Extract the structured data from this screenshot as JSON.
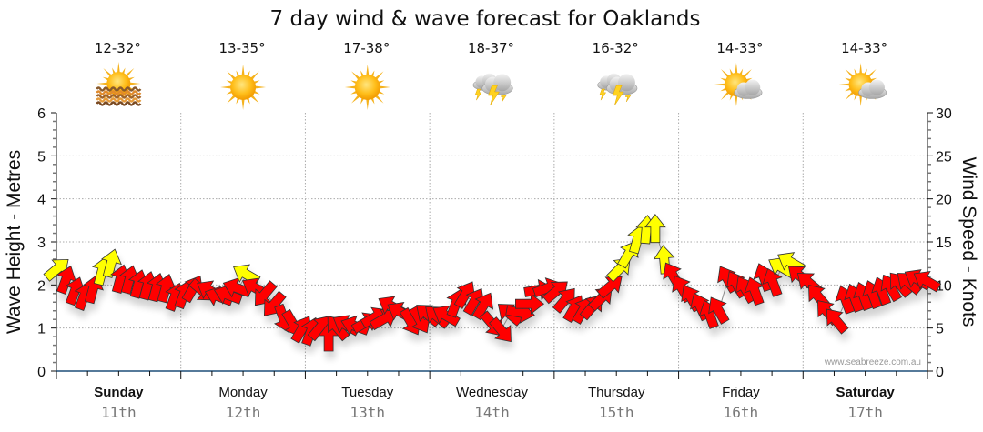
{
  "chart_data": {
    "type": "scatter",
    "title": "7 day wind & wave forecast for Oaklands",
    "ylabel_left": "Wave Height - Metres",
    "ylabel_right": "Wind Speed - Knots",
    "ylim_left": [
      0,
      6
    ],
    "ylim_right": [
      0,
      30
    ],
    "yticks_left": [
      "0",
      "1",
      "2",
      "3",
      "4",
      "5",
      "6"
    ],
    "yticks_right": [
      "0",
      "5",
      "10",
      "15",
      "20",
      "25",
      "30"
    ],
    "grid": true,
    "credit": "www.seabreeze.com.au",
    "days": [
      {
        "name": "Sunday",
        "date": "11th",
        "bold": true,
        "temp": "12-32°",
        "icon": "sun-haze-icon"
      },
      {
        "name": "Monday",
        "date": "12th",
        "bold": false,
        "temp": "13-35°",
        "icon": "sun-icon"
      },
      {
        "name": "Tuesday",
        "date": "13th",
        "bold": false,
        "temp": "17-38°",
        "icon": "sun-icon"
      },
      {
        "name": "Wednesday",
        "date": "14th",
        "bold": false,
        "temp": "18-37°",
        "icon": "thunderstorm-icon"
      },
      {
        "name": "Thursday",
        "date": "15th",
        "bold": false,
        "temp": "16-32°",
        "icon": "thunderstorm-icon"
      },
      {
        "name": "Friday",
        "date": "16th",
        "bold": false,
        "temp": "14-33°",
        "icon": "partly-cloudy-icon"
      },
      {
        "name": "Saturday",
        "date": "17th",
        "bold": true,
        "temp": "14-33°",
        "icon": "partly-cloudy-icon"
      }
    ],
    "series": [
      {
        "name": "Wind",
        "note": "Each arrow: time in hours from start, wind speed in knots (right axis), heading in degrees the arrow points (0 = up, clockwise)",
        "points": [
          {
            "t": 0,
            "speed": 11.8,
            "dir": 50,
            "color": "yellow"
          },
          {
            "t": 2,
            "speed": 10.5,
            "dir": 20,
            "color": "red"
          },
          {
            "t": 4,
            "speed": 9.2,
            "dir": 20,
            "color": "red"
          },
          {
            "t": 6,
            "speed": 8.6,
            "dir": 20,
            "color": "red"
          },
          {
            "t": 8,
            "speed": 9.4,
            "dir": 15,
            "color": "red"
          },
          {
            "t": 10,
            "speed": 11.5,
            "dir": 15,
            "color": "yellow"
          },
          {
            "t": 12,
            "speed": 12.4,
            "dir": 15,
            "color": "yellow"
          },
          {
            "t": 14,
            "speed": 10.6,
            "dir": 15,
            "color": "red"
          },
          {
            "t": 16,
            "speed": 10.5,
            "dir": 15,
            "color": "red"
          },
          {
            "t": 18,
            "speed": 10.0,
            "dir": 15,
            "color": "red"
          },
          {
            "t": 20,
            "speed": 9.8,
            "dir": 15,
            "color": "red"
          },
          {
            "t": 22,
            "speed": 9.6,
            "dir": 15,
            "color": "red"
          },
          {
            "t": 24,
            "speed": 9.5,
            "dir": 15,
            "color": "red"
          },
          {
            "t": 26,
            "speed": 8.5,
            "dir": 20,
            "color": "red"
          },
          {
            "t": 28,
            "speed": 8.8,
            "dir": 20,
            "color": "red"
          },
          {
            "t": 30,
            "speed": 9.5,
            "dir": 30,
            "color": "red"
          },
          {
            "t": 32,
            "speed": 9.4,
            "dir": 130,
            "color": "red"
          },
          {
            "t": 34,
            "speed": 9.3,
            "dir": 300,
            "color": "red"
          },
          {
            "t": 36,
            "speed": 8.6,
            "dir": 290,
            "color": "red"
          },
          {
            "t": 38,
            "speed": 8.8,
            "dir": 290,
            "color": "red"
          },
          {
            "t": 40,
            "speed": 9.6,
            "dir": 290,
            "color": "red"
          },
          {
            "t": 42,
            "speed": 11.2,
            "dir": 300,
            "color": "yellow"
          },
          {
            "t": 44,
            "speed": 9.6,
            "dir": 300,
            "color": "red"
          },
          {
            "t": 46,
            "speed": 9.0,
            "dir": 220,
            "color": "red"
          },
          {
            "t": 48,
            "speed": 7.8,
            "dir": 220,
            "color": "red"
          },
          {
            "t": 50,
            "speed": 6.2,
            "dir": 160,
            "color": "red"
          },
          {
            "t": 52,
            "speed": 5.6,
            "dir": 150,
            "color": "red"
          },
          {
            "t": 54,
            "speed": 4.8,
            "dir": 30,
            "color": "red"
          },
          {
            "t": 56,
            "speed": 4.5,
            "dir": 20,
            "color": "red"
          },
          {
            "t": 58,
            "speed": 5.0,
            "dir": 40,
            "color": "red"
          },
          {
            "t": 60,
            "speed": 3.8,
            "dir": 0,
            "color": "red"
          },
          {
            "t": 62,
            "speed": 5.0,
            "dir": 320,
            "color": "red"
          },
          {
            "t": 64,
            "speed": 5.3,
            "dir": 300,
            "color": "red"
          },
          {
            "t": 66,
            "speed": 5.2,
            "dir": 290,
            "color": "red"
          },
          {
            "t": 68,
            "speed": 5.6,
            "dir": 60,
            "color": "red"
          },
          {
            "t": 70,
            "speed": 6.2,
            "dir": 60,
            "color": "red"
          },
          {
            "t": 72,
            "speed": 6.0,
            "dir": 60,
            "color": "red"
          },
          {
            "t": 74,
            "speed": 7.5,
            "dir": 300,
            "color": "red"
          },
          {
            "t": 76,
            "speed": 6.8,
            "dir": 300,
            "color": "red"
          },
          {
            "t": 78,
            "speed": 5.8,
            "dir": 150,
            "color": "red"
          },
          {
            "t": 80,
            "speed": 6.0,
            "dir": 150,
            "color": "red"
          },
          {
            "t": 82,
            "speed": 6.5,
            "dir": 310,
            "color": "red"
          },
          {
            "t": 84,
            "speed": 6.3,
            "dir": 310,
            "color": "red"
          },
          {
            "t": 86,
            "speed": 6.4,
            "dir": 300,
            "color": "red"
          },
          {
            "t": 88,
            "speed": 7.8,
            "dir": 20,
            "color": "red"
          },
          {
            "t": 90,
            "speed": 8.8,
            "dir": 30,
            "color": "red"
          },
          {
            "t": 92,
            "speed": 8.0,
            "dir": 30,
            "color": "red"
          },
          {
            "t": 94,
            "speed": 7.5,
            "dir": 30,
            "color": "red"
          },
          {
            "t": 96,
            "speed": 5.5,
            "dir": 140,
            "color": "red"
          },
          {
            "t": 98,
            "speed": 4.8,
            "dir": 140,
            "color": "red"
          },
          {
            "t": 100,
            "speed": 6.6,
            "dir": 310,
            "color": "red"
          },
          {
            "t": 102,
            "speed": 6.8,
            "dir": 100,
            "color": "red"
          },
          {
            "t": 104,
            "speed": 7.8,
            "dir": 90,
            "color": "red"
          },
          {
            "t": 106,
            "speed": 9.4,
            "dir": 80,
            "color": "red"
          },
          {
            "t": 108,
            "speed": 9.6,
            "dir": 70,
            "color": "red"
          },
          {
            "t": 110,
            "speed": 9.2,
            "dir": 50,
            "color": "red"
          },
          {
            "t": 112,
            "speed": 8.2,
            "dir": 40,
            "color": "red"
          },
          {
            "t": 114,
            "speed": 7.2,
            "dir": 30,
            "color": "red"
          },
          {
            "t": 116,
            "speed": 7.0,
            "dir": 30,
            "color": "red"
          },
          {
            "t": 118,
            "speed": 7.4,
            "dir": 40,
            "color": "red"
          },
          {
            "t": 120,
            "speed": 8.4,
            "dir": 45,
            "color": "red"
          },
          {
            "t": 122,
            "speed": 9.8,
            "dir": 50,
            "color": "red"
          },
          {
            "t": 124,
            "speed": 11.8,
            "dir": 45,
            "color": "yellow"
          },
          {
            "t": 126,
            "speed": 13.5,
            "dir": 30,
            "color": "yellow"
          },
          {
            "t": 128,
            "speed": 15.2,
            "dir": 15,
            "color": "yellow"
          },
          {
            "t": 130,
            "speed": 16.3,
            "dir": 5,
            "color": "yellow"
          },
          {
            "t": 132,
            "speed": 16.4,
            "dir": 0,
            "color": "yellow"
          },
          {
            "t": 134,
            "speed": 12.8,
            "dir": 355,
            "color": "yellow"
          },
          {
            "t": 136,
            "speed": 11.0,
            "dir": 330,
            "color": "red"
          },
          {
            "t": 138,
            "speed": 9.5,
            "dir": 330,
            "color": "red"
          },
          {
            "t": 140,
            "speed": 8.4,
            "dir": 330,
            "color": "red"
          },
          {
            "t": 142,
            "speed": 7.4,
            "dir": 335,
            "color": "red"
          },
          {
            "t": 144,
            "speed": 6.5,
            "dir": 340,
            "color": "red"
          },
          {
            "t": 146,
            "speed": 7.0,
            "dir": 330,
            "color": "red"
          },
          {
            "t": 148,
            "speed": 10.6,
            "dir": 330,
            "color": "red"
          },
          {
            "t": 150,
            "speed": 10.0,
            "dir": 330,
            "color": "red"
          },
          {
            "t": 152,
            "speed": 9.4,
            "dir": 330,
            "color": "red"
          },
          {
            "t": 154,
            "speed": 9.2,
            "dir": 340,
            "color": "red"
          },
          {
            "t": 156,
            "speed": 10.8,
            "dir": 340,
            "color": "red"
          },
          {
            "t": 158,
            "speed": 10.2,
            "dir": 340,
            "color": "red"
          },
          {
            "t": 160,
            "speed": 12.0,
            "dir": 300,
            "color": "yellow"
          },
          {
            "t": 162,
            "speed": 12.6,
            "dir": 300,
            "color": "yellow"
          },
          {
            "t": 164,
            "speed": 11.0,
            "dir": 310,
            "color": "red"
          },
          {
            "t": 166,
            "speed": 10.2,
            "dir": 310,
            "color": "red"
          },
          {
            "t": 168,
            "speed": 8.6,
            "dir": 320,
            "color": "red"
          },
          {
            "t": 170,
            "speed": 6.8,
            "dir": 320,
            "color": "red"
          },
          {
            "t": 172,
            "speed": 5.8,
            "dir": 320,
            "color": "red"
          },
          {
            "t": 174,
            "speed": 8.2,
            "dir": 340,
            "color": "red"
          },
          {
            "t": 176,
            "speed": 8.4,
            "dir": 340,
            "color": "red"
          },
          {
            "t": 178,
            "speed": 8.6,
            "dir": 340,
            "color": "red"
          },
          {
            "t": 180,
            "speed": 8.8,
            "dir": 340,
            "color": "red"
          },
          {
            "t": 182,
            "speed": 9.2,
            "dir": 340,
            "color": "red"
          },
          {
            "t": 184,
            "speed": 9.6,
            "dir": 330,
            "color": "red"
          },
          {
            "t": 186,
            "speed": 10.0,
            "dir": 320,
            "color": "red"
          },
          {
            "t": 188,
            "speed": 10.2,
            "dir": 310,
            "color": "red"
          },
          {
            "t": 190,
            "speed": 10.6,
            "dir": 300,
            "color": "red"
          },
          {
            "t": 192,
            "speed": 10.4,
            "dir": 300,
            "color": "red"
          }
        ]
      }
    ],
    "x_hours_total": 168,
    "x_ticks_every_hours": 6
  },
  "colors": {
    "arrow_red": "#ff0000",
    "arrow_yellow": "#ffff00",
    "grid": "#aaaaaa",
    "axis": "#1f4e79"
  }
}
